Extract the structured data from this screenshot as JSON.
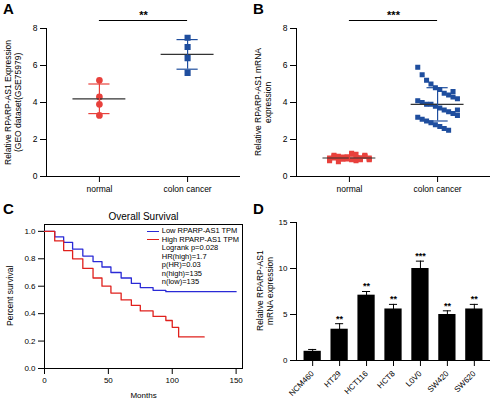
{
  "chart_data": [
    {
      "panel": "A",
      "type": "scatter",
      "ylabel": "Relative RPARP-AS1 Expression (GEO dataset(GSE75979)",
      "series": [
        {
          "name": "normal",
          "color": "#e8413c",
          "marker": "circle",
          "values": [
            5.2,
            4.3,
            3.9,
            3.3
          ],
          "mean": 4.2,
          "sd": 0.8
        },
        {
          "name": "colon cancer",
          "color": "#1f4e9e",
          "marker": "square",
          "values": [
            7.5,
            7.0,
            6.4,
            5.6
          ],
          "mean": 6.6,
          "sd": 0.8
        }
      ],
      "ylim": [
        0,
        8
      ],
      "yticks": [
        0,
        2,
        4,
        6,
        8
      ],
      "annotation": "**"
    },
    {
      "panel": "B",
      "type": "scatter",
      "ylabel": "Relative RPARP-AS1 mRNA expression",
      "series": [
        {
          "name": "normal",
          "color": "#e8413c",
          "marker": "square",
          "values": [
            0.9,
            1.0,
            1.1,
            0.95,
            1.05,
            1.2,
            0.85,
            1.0,
            1.15,
            0.9,
            1.0,
            1.1,
            0.8,
            1.05,
            0.95,
            1.25,
            1.0,
            0.9,
            1.1,
            1.0,
            0.85,
            1.15,
            1.0,
            0.95,
            1.05,
            0.9,
            1.2,
            1.0,
            1.1,
            0.95
          ],
          "mean": 1.0,
          "sd": 0.12
        },
        {
          "name": "colon cancer",
          "color": "#1f4e9e",
          "marker": "square",
          "values": [
            5.9,
            5.5,
            5.2,
            5.0,
            4.8,
            4.7,
            4.5,
            4.4,
            4.3,
            4.2,
            4.1,
            4.0,
            3.9,
            3.9,
            3.8,
            3.7,
            3.6,
            3.5,
            3.4,
            3.3,
            3.2,
            3.1,
            3.0,
            2.9,
            2.8,
            2.7,
            2.6,
            2.5,
            4.6,
            3.6
          ],
          "mean": 3.9,
          "sd": 0.9
        }
      ],
      "ylim": [
        0,
        8
      ],
      "yticks": [
        0,
        2,
        4,
        6,
        8
      ],
      "annotation": "***"
    },
    {
      "panel": "C",
      "type": "line",
      "title": "Overall Survival",
      "xlabel": "Months",
      "ylabel": "Percent survival",
      "line_style": "step",
      "series": [
        {
          "name": "Low RPARP-AS1 TPM",
          "color": "#2a2ad6",
          "x": [
            0,
            8,
            15,
            22,
            30,
            38,
            45,
            52,
            60,
            68,
            75,
            85,
            95,
            150
          ],
          "values": [
            1.0,
            0.96,
            0.92,
            0.87,
            0.82,
            0.78,
            0.74,
            0.7,
            0.66,
            0.62,
            0.59,
            0.57,
            0.56,
            0.56
          ]
        },
        {
          "name": "High RPARP-AS1 TPM",
          "color": "#e0201c",
          "x": [
            0,
            8,
            15,
            22,
            30,
            38,
            45,
            52,
            60,
            68,
            75,
            85,
            95,
            100,
            105,
            125
          ],
          "values": [
            1.0,
            0.93,
            0.86,
            0.8,
            0.73,
            0.66,
            0.6,
            0.55,
            0.5,
            0.46,
            0.42,
            0.38,
            0.35,
            0.3,
            0.23,
            0.23
          ]
        }
      ],
      "xlim": [
        0,
        155
      ],
      "ylim": [
        0,
        1.05
      ],
      "xticks": [
        0,
        50,
        100,
        150
      ],
      "yticks": [
        {
          "value": 0,
          "label": "0.0"
        },
        {
          "value": 0.2,
          "label": "0.2"
        },
        {
          "value": 0.4,
          "label": "0.4"
        },
        {
          "value": 0.6,
          "label": "0.6"
        },
        {
          "value": 0.8,
          "label": "0.8"
        },
        {
          "value": 1,
          "label": "1.0"
        }
      ],
      "legend": "top-right",
      "annotations": [
        "Logrank p=0.028",
        "HR(high)=1.7",
        "p(HR)=0.03",
        "n(high)=135",
        "n(low)=135"
      ]
    },
    {
      "panel": "D",
      "type": "bar",
      "ylabel": "Relative RPARP-AS1 mRNA expression",
      "categories": [
        "NCM460",
        "HT29",
        "HCT116",
        "HCT8",
        "L0V0",
        "SW420",
        "SW620"
      ],
      "values": [
        1.0,
        3.4,
        7.1,
        5.6,
        10.0,
        5.0,
        5.6
      ],
      "errors": [
        0.2,
        0.6,
        0.4,
        0.5,
        0.8,
        0.4,
        0.5
      ],
      "significance": [
        null,
        "**",
        "**",
        "**",
        "***",
        "**",
        "**"
      ],
      "color": "#000000",
      "ylim": [
        0,
        15
      ],
      "yticks": [
        0,
        5,
        10,
        15
      ]
    }
  ]
}
